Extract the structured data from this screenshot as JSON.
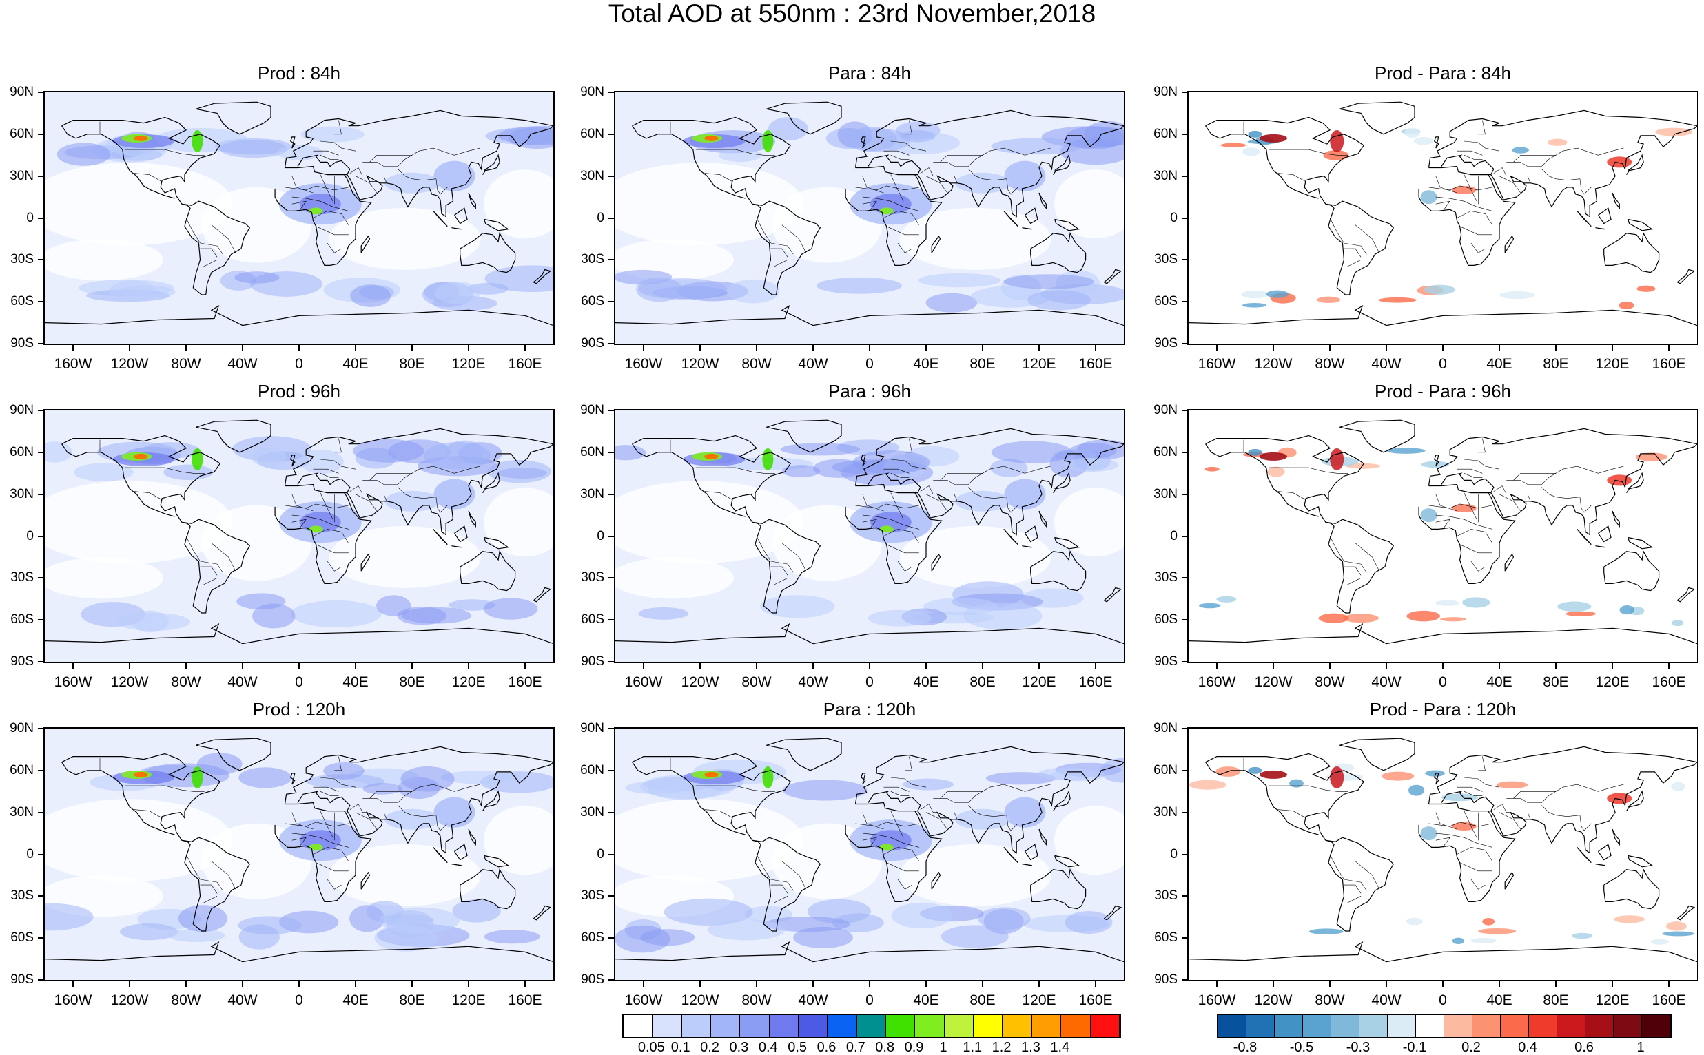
{
  "title": "Total AOD at 550nm : 23rd November,2018",
  "panels": [
    {
      "title": "Prod : 84h",
      "kind": "aod"
    },
    {
      "title": "Para : 84h",
      "kind": "aod"
    },
    {
      "title": "Prod - Para : 84h",
      "kind": "diff"
    },
    {
      "title": "Prod : 96h",
      "kind": "aod"
    },
    {
      "title": "Para : 96h",
      "kind": "aod"
    },
    {
      "title": "Prod - Para : 96h",
      "kind": "diff"
    },
    {
      "title": "Prod : 120h",
      "kind": "aod"
    },
    {
      "title": "Para : 120h",
      "kind": "aod"
    },
    {
      "title": "Prod - Para : 120h",
      "kind": "diff"
    }
  ],
  "lat_labels": [
    "90N",
    "60N",
    "30N",
    "0",
    "30S",
    "60S",
    "90S"
  ],
  "lon_labels": [
    "160W",
    "120W",
    "80W",
    "40W",
    "0",
    "40E",
    "80E",
    "120E",
    "160E"
  ],
  "aod_colorbar": {
    "labels": [
      "0.05",
      "0.1",
      "0.2",
      "0.3",
      "0.4",
      "0.5",
      "0.6",
      "0.7",
      "0.8",
      "0.9",
      "1",
      "1.1",
      "1.2",
      "1.3",
      "1.4"
    ],
    "colors": [
      "#ffffff",
      "#d8e2fd",
      "#bccdfb",
      "#a1b5f8",
      "#8a9cf3",
      "#6f7aee",
      "#4c5ae6",
      "#0a63f2",
      "#00908f",
      "#40e000",
      "#7fed1f",
      "#bff23a",
      "#ffff00",
      "#ffc000",
      "#ff9d00",
      "#ff6a00",
      "#ff1010"
    ]
  },
  "diff_colorbar": {
    "labels": [
      "-0.8",
      "-0.5",
      "-0.3",
      "-0.1",
      "0.2",
      "0.4",
      "0.6",
      "1"
    ],
    "colors": [
      "#08519c",
      "#2171b5",
      "#4292c6",
      "#5aa2cf",
      "#7fb8d8",
      "#a8d1e6",
      "#dcecf6",
      "#ffffff",
      "#fcbba1",
      "#fc9272",
      "#fb6a4a",
      "#ef3b2c",
      "#cb181d",
      "#a50f15",
      "#7e0a14",
      "#500008"
    ]
  }
}
